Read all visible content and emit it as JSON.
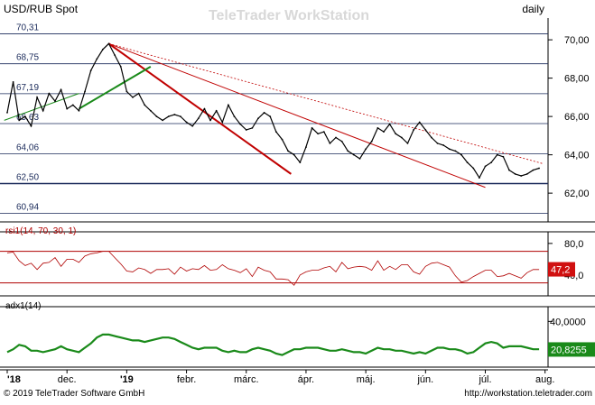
{
  "header": {
    "symbol": "USD/RUB Spot",
    "watermark": "TeleTrader WorkStation",
    "period": "daily"
  },
  "footer": {
    "copyright": "© 2019 TeleTrader Software GmbH",
    "url": "http://workstation.teletrader.com"
  },
  "colors": {
    "background": "#ffffff",
    "price_line": "#000000",
    "support_line": "#1a2a5a",
    "trend_red": "#c00000",
    "trend_green": "#1a8a1a",
    "fib_lines": "#1a2a5a",
    "rsi_line": "#b00000",
    "adx_line": "#1a8a1a",
    "rsi_badge": "#d01010",
    "adx_badge": "#1a8a1a",
    "grid": "#d0d0d0"
  },
  "chart_data": [
    {
      "type": "line",
      "panel": "price",
      "title": "USD/RUB Spot",
      "ylim": [
        60.5,
        70.9
      ],
      "right_ticks": [
        "70,00",
        "68,00",
        "66,00",
        "64,00",
        "62,00"
      ],
      "right_tick_values": [
        70,
        68,
        66,
        64,
        62
      ],
      "fib_levels": [
        {
          "label": "70,31",
          "value": 70.31
        },
        {
          "label": "68,75",
          "value": 68.75
        },
        {
          "label": "67,19",
          "value": 67.19
        },
        {
          "label": "65,63",
          "value": 65.63
        },
        {
          "label": "64,06",
          "value": 64.06
        },
        {
          "label": "62,50",
          "value": 62.5
        },
        {
          "label": "60,94",
          "value": 60.94
        }
      ],
      "x_labels": [
        "'18",
        "dec.",
        "'19",
        "febr.",
        "márc.",
        "ápr.",
        "máj.",
        "jún.",
        "júl.",
        "aug."
      ],
      "x_label_pos": [
        0,
        1,
        2,
        3,
        4,
        5,
        6,
        7,
        8,
        9
      ],
      "series": [
        {
          "t": [
            0,
            0.1,
            0.2,
            0.3,
            0.4,
            0.5,
            0.6,
            0.7,
            0.8,
            0.9,
            1.0,
            1.1,
            1.2,
            1.3,
            1.4,
            1.5,
            1.6,
            1.7,
            1.8,
            1.9,
            2.0,
            2.1,
            2.2,
            2.3,
            2.4,
            2.5,
            2.6,
            2.7,
            2.8,
            2.9,
            3.0,
            3.1,
            3.2,
            3.3,
            3.4,
            3.5,
            3.6,
            3.7,
            3.8,
            3.9,
            4.0,
            4.1,
            4.2,
            4.3,
            4.4,
            4.5,
            4.6,
            4.7,
            4.8,
            4.9,
            5.0,
            5.1,
            5.2,
            5.3,
            5.4,
            5.5,
            5.6,
            5.7,
            5.8,
            5.9,
            6.0,
            6.1,
            6.2,
            6.3,
            6.4,
            6.5,
            6.6,
            6.7,
            6.8,
            6.9,
            7.0,
            7.1,
            7.2,
            7.3,
            7.4,
            7.5,
            7.6,
            7.7,
            7.8,
            7.9,
            8.0,
            8.1,
            8.2,
            8.3,
            8.4,
            8.5,
            8.6,
            8.7,
            8.8,
            8.9
          ],
          "values": [
            66.2,
            67.8,
            65.8,
            66.0,
            65.5,
            67.0,
            66.3,
            67.2,
            66.8,
            67.4,
            66.4,
            66.6,
            66.3,
            67.3,
            68.4,
            69.0,
            69.5,
            69.8,
            69.2,
            68.6,
            67.3,
            67.0,
            67.2,
            66.6,
            66.3,
            66.0,
            65.8,
            66.0,
            66.1,
            66.0,
            65.7,
            65.5,
            65.9,
            66.4,
            65.8,
            66.3,
            65.7,
            66.6,
            66.0,
            65.6,
            65.3,
            65.4,
            65.9,
            66.2,
            66.0,
            65.2,
            64.8,
            64.2,
            64.0,
            63.6,
            64.4,
            65.4,
            65.1,
            65.2,
            64.6,
            64.9,
            64.7,
            64.2,
            64.0,
            63.8,
            64.3,
            64.7,
            65.4,
            65.2,
            65.6,
            65.1,
            64.9,
            64.6,
            65.3,
            65.7,
            65.3,
            64.9,
            64.6,
            64.5,
            64.3,
            64.2,
            64.0,
            63.6,
            63.3,
            62.8,
            63.4,
            63.6,
            64.0,
            63.9,
            63.2,
            63.0,
            62.9,
            63.0,
            63.2,
            63.3
          ]
        }
      ]
    },
    {
      "type": "line",
      "panel": "rsi",
      "title": "rsi1(14, 70, 30, 1)",
      "ylim": [
        17,
        89
      ],
      "right_ticks": [
        "80,0",
        "40,0"
      ],
      "right_tick_values": [
        80,
        40
      ],
      "levels": [
        70,
        30
      ],
      "last_value_label": "47,2",
      "last_value": 47.2,
      "series": [
        {
          "values": [
            68,
            69,
            58,
            52,
            55,
            47,
            55,
            56,
            62,
            51,
            60,
            60,
            56,
            64,
            67,
            68,
            70,
            70,
            62,
            54,
            45,
            44,
            49,
            47,
            42,
            47,
            47,
            48,
            41,
            50,
            45,
            48,
            47,
            52,
            46,
            47,
            53,
            48,
            46,
            43,
            48,
            38,
            50,
            46,
            44,
            35,
            35,
            34,
            27,
            40,
            44,
            46,
            46,
            49,
            51,
            44,
            56,
            48,
            50,
            51,
            50,
            46,
            58,
            46,
            51,
            47,
            53,
            53,
            44,
            41,
            51,
            55,
            56,
            53,
            50,
            39,
            31,
            33,
            38,
            42,
            46,
            46,
            38,
            39,
            42,
            39,
            36,
            43,
            47,
            47
          ]
        }
      ]
    },
    {
      "type": "line",
      "panel": "adx",
      "title": "adx1(14)",
      "ylim": [
        10,
        47
      ],
      "right_ticks": [
        "40,0000"
      ],
      "right_tick_values": [
        40
      ],
      "last_value_label": "20,8255",
      "last_value": 20.8255,
      "series": [
        {
          "values": [
            19,
            21,
            24,
            23,
            20,
            20,
            19,
            20,
            21,
            23,
            21,
            20,
            19,
            22,
            25,
            29,
            31,
            31,
            30,
            29,
            28,
            27,
            27,
            26,
            27,
            28,
            29,
            29,
            28,
            26,
            24,
            22,
            21,
            22,
            22,
            22,
            20,
            19,
            20,
            19,
            19,
            21,
            22,
            21,
            20,
            18,
            17,
            19,
            21,
            21,
            22,
            22,
            22,
            21,
            20,
            20,
            21,
            20,
            19,
            19,
            18,
            20,
            22,
            21,
            21,
            20,
            20,
            19,
            18,
            19,
            18,
            20,
            22,
            22,
            21,
            21,
            20,
            18,
            19,
            22,
            25,
            26,
            25,
            22,
            23,
            23,
            23,
            22,
            21,
            21
          ]
        }
      ]
    }
  ]
}
